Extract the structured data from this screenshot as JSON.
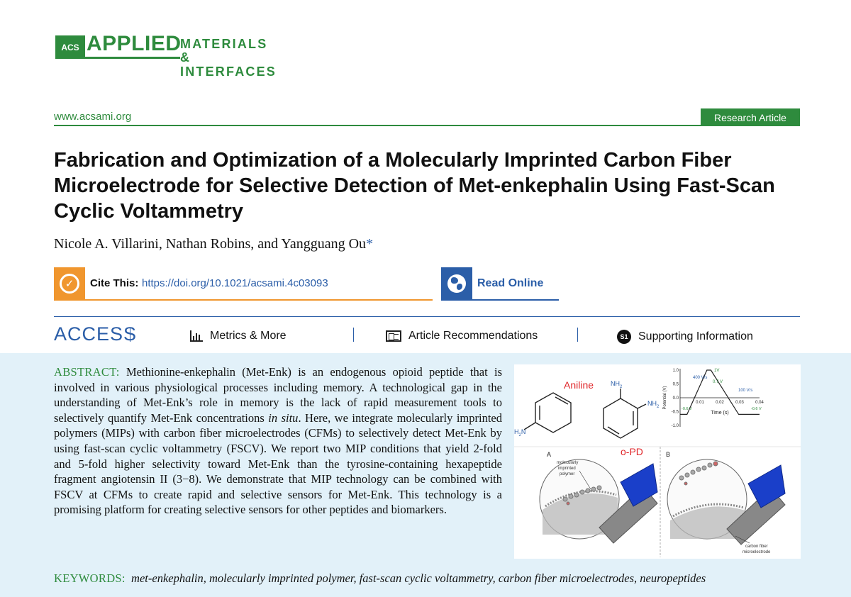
{
  "journal": {
    "publisher": "ACS",
    "name_line1": "APPLIED",
    "name_line2": "MATERIALS",
    "name_line3": "& INTERFACES",
    "website": "www.acsami.org",
    "article_type": "Research Article",
    "brand_color": "#2e8b3d",
    "link_color": "#2b5ea8",
    "cite_color": "#f0962e",
    "abstract_bg": "#e2f1f9"
  },
  "article": {
    "title": "Fabrication and Optimization of a Molecularly Imprinted Carbon Fiber Microelectrode for Selective Detection of Met-enkephalin Using Fast-Scan Cyclic Voltammetry",
    "authors": "Nicole A. Villarini, Nathan Robins, and Yangguang Ou",
    "corresponding_mark": "*"
  },
  "cite": {
    "label": "Cite This:",
    "doi_link": "https://doi.org/10.1021/acsami.4c03093",
    "icon": "check-icon"
  },
  "read_online": {
    "label": "Read Online",
    "icon": "globe-icon"
  },
  "access": {
    "label": "ACCESS",
    "items": [
      {
        "label": "Metrics & More",
        "icon": "bar-chart-icon"
      },
      {
        "label": "Article Recommendations",
        "icon": "article-icon"
      },
      {
        "label": "Supporting Information",
        "icon": "si-icon",
        "badge": "S1"
      }
    ]
  },
  "abstract": {
    "lead": "ABSTRACT:",
    "text_1": "Methionine-enkephalin (Met-Enk) is an endogenous opioid peptide that is involved in various physiological processes including memory. A technological gap in the understanding of Met-Enk’s role in memory is the lack of rapid measurement tools to selectively quantify Met-Enk concentrations ",
    "text_italic": "in situ",
    "text_2": ". Here, we integrate molecularly imprinted polymers (MIPs) with carbon fiber microelectrodes (CFMs) to selectively detect Met-Enk by using fast-scan cyclic voltammetry (FSCV). We report two MIP conditions that yield 2-fold and 5-fold higher selectivity toward Met-Enk than the tyrosine-containing hexapeptide fragment angiotensin II (3−8). We demonstrate that MIP technology can be combined with FSCV at CFMs to create rapid and selective sensors for Met-Enk. This technology is a promising platform for creating selective sensors for other peptides and biomarkers."
  },
  "keywords": {
    "lead": "KEYWORDS:",
    "list": "met-enkephalin, molecularly imprinted polymer, fast-scan cyclic voltammetry, carbon fiber microelectrodes, neuropeptides"
  },
  "toc_graphic": {
    "aniline_label": "Aniline",
    "opd_label": "o-PD",
    "nh2": "NH",
    "nh2_sub": "2",
    "h2n": "H",
    "h2n_n": "N",
    "panel_a": "A",
    "panel_b": "B",
    "mip_label_1": "molecularly",
    "mip_label_2": "imprinted",
    "mip_label_3": "polymer",
    "cfm_label_1": "carbon fiber",
    "cfm_label_2": "microelectrode",
    "waveform": {
      "ylabel": "Potential (V)",
      "xlabel": "Time (s)",
      "yticks": [
        "1.0",
        "0.5",
        "0.0",
        "-0.5",
        "-1.0"
      ],
      "xticks": [
        "0.01",
        "0.02",
        "0.03",
        "0.04"
      ],
      "ylim": [
        -1.0,
        1.0
      ],
      "xlim": [
        0,
        0.04
      ],
      "annotations": [
        "400 V/s",
        "1V",
        "0.7 V",
        "100 V/s",
        "-0.6 V",
        "-0.6 V"
      ],
      "points": [
        {
          "t": 0.0,
          "v": -0.6
        },
        {
          "t": 0.0035,
          "v": -0.6
        },
        {
          "t": 0.0135,
          "v": 1.0
        },
        {
          "t": 0.0155,
          "v": 1.0
        },
        {
          "t": 0.0295,
          "v": -0.6
        },
        {
          "t": 0.04,
          "v": -0.6
        }
      ]
    }
  }
}
